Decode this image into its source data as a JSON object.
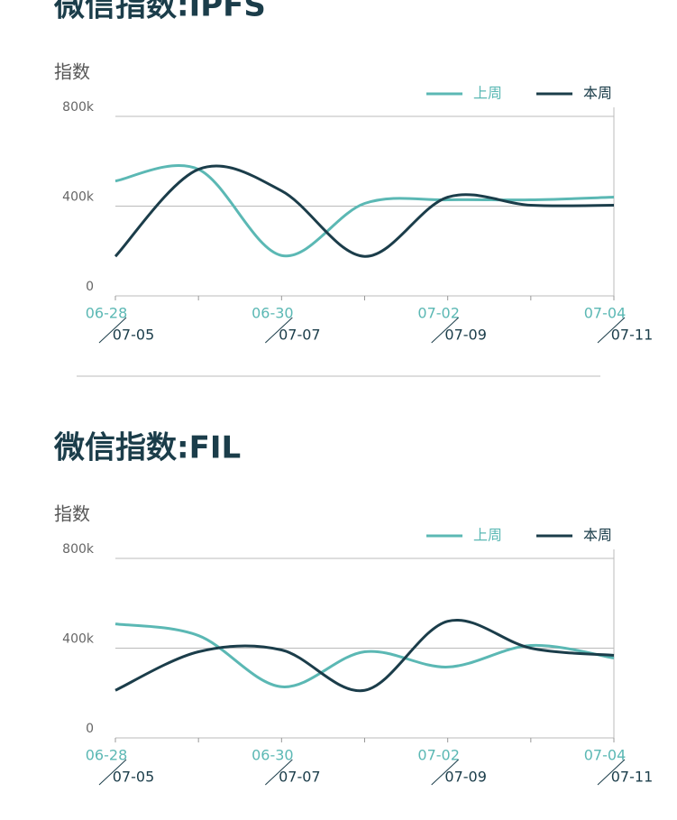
{
  "chart_data": [
    {
      "type": "line",
      "title": "微信指数:IPFS",
      "y_label": "指数",
      "categories": [
        "06-28",
        null,
        "06-30",
        null,
        "07-02",
        null,
        "07-04"
      ],
      "categories_this_week": [
        "07-05",
        null,
        "07-07",
        null,
        "07-09",
        null,
        "07-11"
      ],
      "series": [
        {
          "name": "上周",
          "color": "#5bb8b4",
          "values": [
            512000,
            564000,
            180000,
            412000,
            428000,
            428000,
            440000
          ]
        },
        {
          "name": "本周",
          "color": "#1b3d4a",
          "values": [
            176000,
            564000,
            468000,
            176000,
            440000,
            404000,
            404000
          ]
        }
      ],
      "ylim": [
        0,
        800000
      ],
      "yticks": [
        0,
        {
          "value": 400000,
          "label": "400k"
        },
        {
          "value": 800000,
          "label": "800k"
        }
      ],
      "grid": true,
      "legend": "top-right"
    },
    {
      "type": "line",
      "title": "微信指数:FIL",
      "y_label": "指数",
      "categories": [
        "06-28",
        null,
        "06-30",
        null,
        "07-02",
        null,
        "07-04"
      ],
      "categories_this_week": [
        "07-05",
        null,
        "07-07",
        null,
        "07-09",
        null,
        "07-11"
      ],
      "series": [
        {
          "name": "上周",
          "color": "#5bb8b4",
          "values": [
            508000,
            456000,
            228000,
            384000,
            316000,
            412000,
            356000
          ]
        },
        {
          "name": "本周",
          "color": "#1b3d4a",
          "values": [
            212000,
            384000,
            392000,
            212000,
            520000,
            400000,
            368000
          ]
        }
      ],
      "ylim": [
        0,
        800000
      ],
      "yticks": [
        0,
        {
          "value": 400000,
          "label": "400k"
        },
        {
          "value": 800000,
          "label": "800k"
        }
      ],
      "grid": true,
      "legend": "top-right"
    }
  ]
}
